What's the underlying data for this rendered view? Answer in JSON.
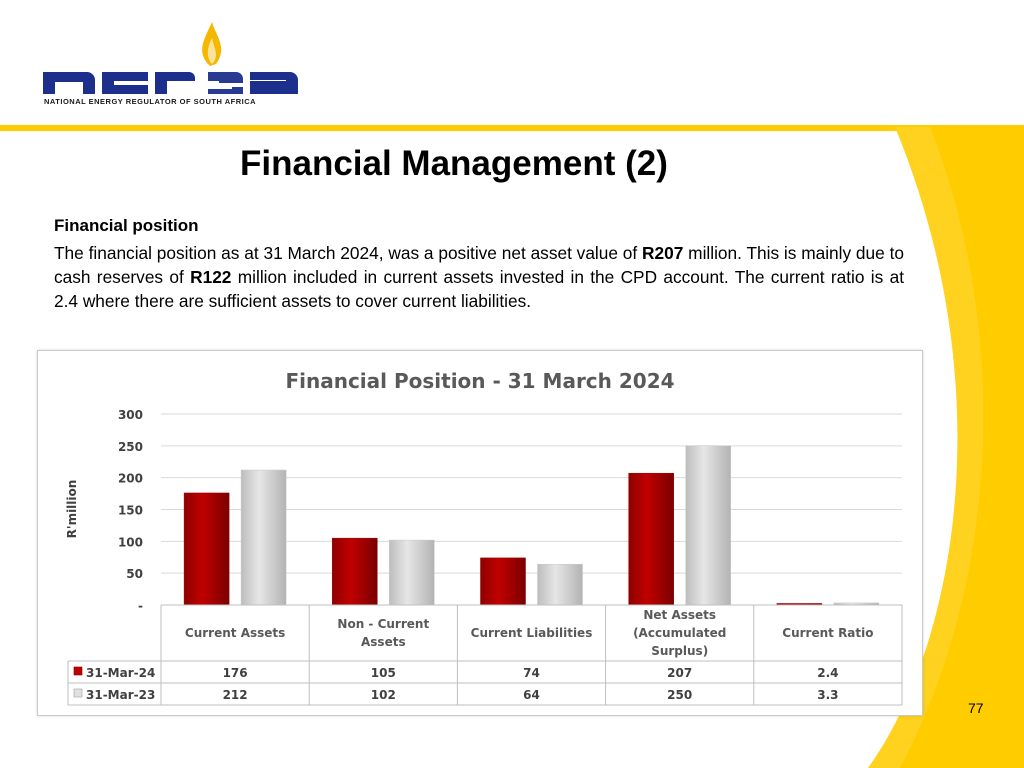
{
  "logo": {
    "wordmark": "nersa",
    "subtitle": "NATIONAL ENERGY REGULATOR OF SOUTH AFRICA"
  },
  "slide": {
    "title": "Financial Management (2)",
    "subheading": "Financial position",
    "paragraph": [
      {
        "text": "The financial position as at 31 March 2024, was a positive net asset value of "
      },
      {
        "text": "R207",
        "bold": true
      },
      {
        "text": " million. This is mainly due to cash reserves of "
      },
      {
        "text": "R122",
        "bold": true
      },
      {
        "text": " million included in current assets invested in the CPD account. The current ratio is at 2.4 where there are sufficient assets to cover current liabilities."
      }
    ],
    "page_number": "77"
  },
  "colors": {
    "series_2024": "#c00000",
    "series_2023": "#e6e6e6",
    "accent_yellow": "#ffcc00",
    "logo_blue": "#1c2f8c",
    "logo_flame": "#f5b800"
  },
  "chart_data": {
    "type": "bar",
    "title": "Financial Position - 31 March 2024",
    "ylabel": "R'million",
    "ylim": [
      0,
      300
    ],
    "yticks": [
      "-",
      "50",
      "100",
      "150",
      "200",
      "250",
      "300"
    ],
    "categories": [
      [
        "Current Assets"
      ],
      [
        "Non - Current",
        "Assets"
      ],
      [
        "Current Liabilities"
      ],
      [
        "Net Assets",
        "(Accumulated",
        "Surplus)"
      ],
      [
        "Current Ratio"
      ]
    ],
    "series": [
      {
        "name": "31-Mar-24",
        "values": [
          176,
          105,
          74,
          207,
          2.4
        ],
        "labels": [
          "176",
          "105",
          "74",
          "207",
          "2.4"
        ]
      },
      {
        "name": "31-Mar-23",
        "values": [
          212,
          102,
          64,
          250,
          3.3
        ],
        "labels": [
          "212",
          "102",
          "64",
          "250",
          "3.3"
        ]
      }
    ],
    "grid": true,
    "legend": "data table below chart"
  }
}
